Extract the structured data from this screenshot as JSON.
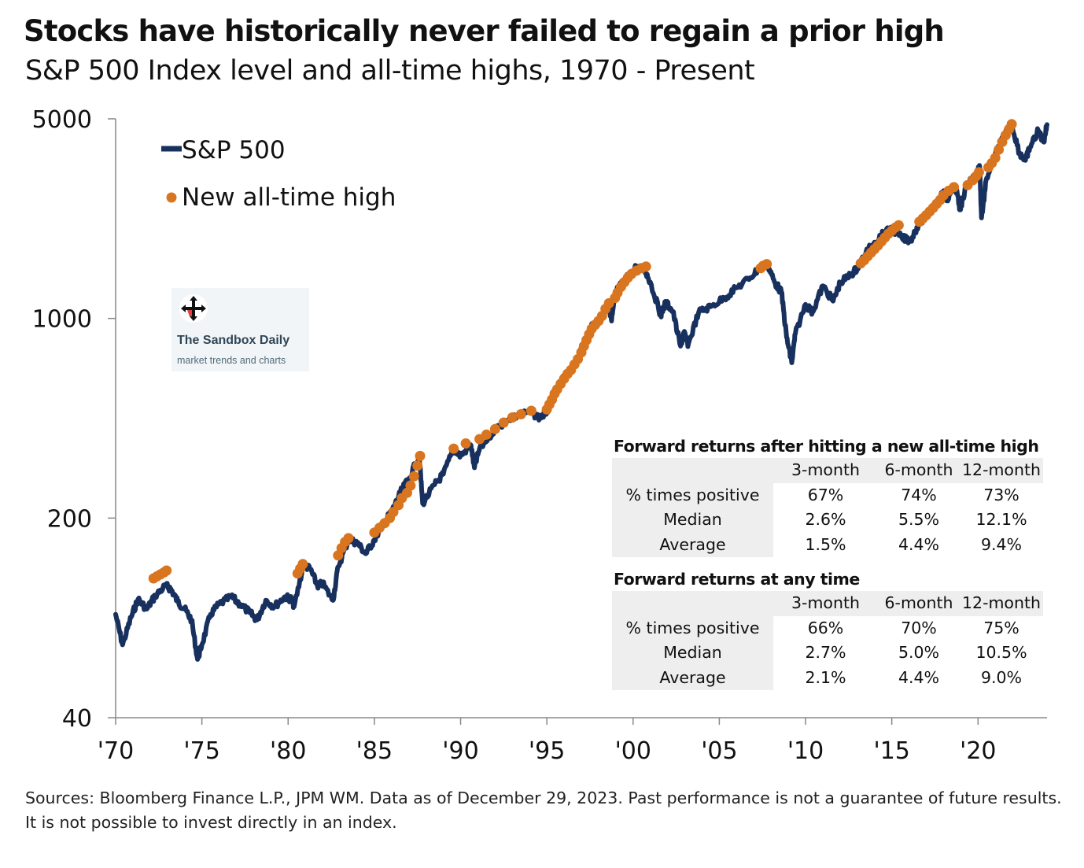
{
  "title": "Stocks have historically never failed to regain a prior high",
  "subtitle": "S&P 500 Index level and all-time highs, 1970 - Present",
  "chart_data": {
    "type": "line",
    "yscale": "log",
    "ylim": [
      40,
      5000
    ],
    "yticks": [
      {
        "value": 40,
        "label": "40"
      },
      {
        "value": 200,
        "label": "200"
      },
      {
        "value": 1000,
        "label": "1000"
      },
      {
        "value": 5000,
        "label": "5000"
      }
    ],
    "xlim": [
      1970,
      2024
    ],
    "xticks": [
      {
        "value": 1970,
        "label": "'70"
      },
      {
        "value": 1975,
        "label": "'75"
      },
      {
        "value": 1980,
        "label": "'80"
      },
      {
        "value": 1985,
        "label": "'85"
      },
      {
        "value": 1990,
        "label": "'90"
      },
      {
        "value": 1995,
        "label": "'95"
      },
      {
        "value": 2000,
        "label": "'00"
      },
      {
        "value": 2005,
        "label": "'05"
      },
      {
        "value": 2010,
        "label": "'10"
      },
      {
        "value": 2015,
        "label": "'15"
      },
      {
        "value": 2020,
        "label": "'20"
      }
    ],
    "legend": {
      "placement": "top-left",
      "line_label": "S&P 500",
      "marker_label": "New all-time high"
    },
    "colors": {
      "line": "#17305e",
      "marker": "#d9741f"
    },
    "series": [
      {
        "name": "S&P 500",
        "type": "line",
        "points": [
          [
            1970.0,
            92
          ],
          [
            1970.4,
            72
          ],
          [
            1970.9,
            90
          ],
          [
            1971.3,
            104
          ],
          [
            1971.8,
            96
          ],
          [
            1972.3,
            107
          ],
          [
            1972.9,
            116
          ],
          [
            1973.2,
            113
          ],
          [
            1973.6,
            102
          ],
          [
            1974.0,
            96
          ],
          [
            1974.4,
            88
          ],
          [
            1974.75,
            64
          ],
          [
            1975.0,
            72
          ],
          [
            1975.5,
            92
          ],
          [
            1976.0,
            100
          ],
          [
            1976.7,
            106
          ],
          [
            1977.2,
            100
          ],
          [
            1977.8,
            93
          ],
          [
            1978.2,
            88
          ],
          [
            1978.7,
            103
          ],
          [
            1979.2,
            98
          ],
          [
            1979.8,
            106
          ],
          [
            1980.2,
            104
          ],
          [
            1980.35,
            98
          ],
          [
            1980.9,
            138
          ],
          [
            1981.3,
            132
          ],
          [
            1981.7,
            116
          ],
          [
            1982.0,
            118
          ],
          [
            1982.6,
            103
          ],
          [
            1982.9,
            135
          ],
          [
            1983.5,
            168
          ],
          [
            1984.0,
            164
          ],
          [
            1984.5,
            150
          ],
          [
            1985.0,
            168
          ],
          [
            1985.5,
            191
          ],
          [
            1986.0,
            210
          ],
          [
            1986.5,
            245
          ],
          [
            1987.0,
            275
          ],
          [
            1987.6,
            330
          ],
          [
            1987.8,
            225
          ],
          [
            1988.5,
            262
          ],
          [
            1989.0,
            285
          ],
          [
            1989.6,
            350
          ],
          [
            1990.0,
            330
          ],
          [
            1990.6,
            360
          ],
          [
            1990.8,
            300
          ],
          [
            1991.1,
            350
          ],
          [
            1992.0,
            410
          ],
          [
            1993.0,
            450
          ],
          [
            1994.0,
            470
          ],
          [
            1994.6,
            450
          ],
          [
            1995.0,
            470
          ],
          [
            1995.5,
            560
          ],
          [
            1996.0,
            620
          ],
          [
            1996.6,
            690
          ],
          [
            1997.0,
            780
          ],
          [
            1997.5,
            920
          ],
          [
            1998.0,
            980
          ],
          [
            1998.6,
            1120
          ],
          [
            1998.75,
            980
          ],
          [
            1999.0,
            1240
          ],
          [
            1999.5,
            1360
          ],
          [
            2000.2,
            1520
          ],
          [
            2000.7,
            1470
          ],
          [
            2001.0,
            1340
          ],
          [
            2001.6,
            1030
          ],
          [
            2001.9,
            1140
          ],
          [
            2002.3,
            1060
          ],
          [
            2002.75,
            800
          ],
          [
            2002.95,
            890
          ],
          [
            2003.2,
            810
          ],
          [
            2003.8,
            1050
          ],
          [
            2004.5,
            1100
          ],
          [
            2005.3,
            1180
          ],
          [
            2006.0,
            1280
          ],
          [
            2006.8,
            1390
          ],
          [
            2007.4,
            1520
          ],
          [
            2007.8,
            1540
          ],
          [
            2008.2,
            1340
          ],
          [
            2008.6,
            1240
          ],
          [
            2008.9,
            860
          ],
          [
            2009.2,
            700
          ],
          [
            2009.4,
            880
          ],
          [
            2010.0,
            1120
          ],
          [
            2010.4,
            1050
          ],
          [
            2011.0,
            1300
          ],
          [
            2011.6,
            1150
          ],
          [
            2012.0,
            1330
          ],
          [
            2012.6,
            1420
          ],
          [
            2013.0,
            1500
          ],
          [
            2013.5,
            1700
          ],
          [
            2014.0,
            1850
          ],
          [
            2014.5,
            1980
          ],
          [
            2015.0,
            2060
          ],
          [
            2015.6,
            1910
          ],
          [
            2016.1,
            1880
          ],
          [
            2016.6,
            2170
          ],
          [
            2017.0,
            2270
          ],
          [
            2017.6,
            2500
          ],
          [
            2018.0,
            2800
          ],
          [
            2018.2,
            2610
          ],
          [
            2018.7,
            2920
          ],
          [
            2018.95,
            2400
          ],
          [
            2019.3,
            2900
          ],
          [
            2019.9,
            3230
          ],
          [
            2020.1,
            3380
          ],
          [
            2020.2,
            2250
          ],
          [
            2020.5,
            3100
          ],
          [
            2021.0,
            3750
          ],
          [
            2021.5,
            4350
          ],
          [
            2021.95,
            4790
          ],
          [
            2022.4,
            3800
          ],
          [
            2022.75,
            3580
          ],
          [
            2023.0,
            3970
          ],
          [
            2023.5,
            4550
          ],
          [
            2023.8,
            4150
          ],
          [
            2024.0,
            4770
          ]
        ]
      },
      {
        "name": "New all-time high",
        "type": "scatter",
        "x": [
          1972.2,
          1972.4,
          1972.6,
          1972.8,
          1972.95,
          1980.55,
          1980.7,
          1980.85,
          1982.9,
          1983.1,
          1983.3,
          1983.5,
          1985.0,
          1985.3,
          1985.6,
          1985.9,
          1986.1,
          1986.4,
          1986.6,
          1986.9,
          1987.1,
          1987.3,
          1987.5,
          1987.65,
          1989.6,
          1990.3,
          1991.1,
          1991.5,
          1992.0,
          1992.5,
          1993.0,
          1993.5,
          1994.1,
          1995.0,
          1995.15,
          1995.3,
          1995.45,
          1995.6,
          1995.8,
          1996.0,
          1996.2,
          1996.4,
          1996.6,
          1996.8,
          1997.0,
          1997.15,
          1997.3,
          1997.45,
          1997.6,
          1997.8,
          1998.0,
          1998.2,
          1998.4,
          1998.6,
          1998.95,
          1999.1,
          1999.3,
          1999.5,
          1999.7,
          1999.9,
          2000.2,
          2000.5,
          2000.75,
          2007.4,
          2007.55,
          2007.75,
          2013.2,
          2013.4,
          2013.6,
          2013.8,
          2014.0,
          2014.2,
          2014.4,
          2014.6,
          2014.8,
          2015.0,
          2015.2,
          2015.4,
          2016.6,
          2016.8,
          2017.0,
          2017.2,
          2017.4,
          2017.6,
          2017.8,
          2018.0,
          2018.3,
          2018.6,
          2019.4,
          2019.7,
          2019.9,
          2020.05,
          2020.6,
          2020.8,
          2021.0,
          2021.2,
          2021.4,
          2021.6,
          2021.8,
          2021.95
        ],
        "y": [
          123,
          125,
          127,
          129,
          131,
          128,
          133,
          138,
          148,
          157,
          165,
          170,
          178,
          185,
          192,
          200,
          210,
          222,
          235,
          245,
          260,
          280,
          305,
          330,
          350,
          365,
          378,
          392,
          410,
          432,
          450,
          462,
          475,
          480,
          500,
          520,
          545,
          565,
          590,
          615,
          640,
          660,
          690,
          720,
          760,
          800,
          840,
          880,
          920,
          950,
          980,
          1020,
          1080,
          1130,
          1180,
          1230,
          1290,
          1340,
          1390,
          1430,
          1470,
          1500,
          1520,
          1500,
          1530,
          1550,
          1560,
          1600,
          1650,
          1700,
          1750,
          1800,
          1860,
          1920,
          1980,
          2030,
          2080,
          2120,
          2180,
          2240,
          2300,
          2370,
          2440,
          2520,
          2600,
          2700,
          2800,
          2880,
          2930,
          3050,
          3150,
          3250,
          3380,
          3500,
          3650,
          3900,
          4150,
          4380,
          4600,
          4790
        ]
      }
    ]
  },
  "watermark": {
    "name": "The Sandbox Daily",
    "tagline": "market trends and charts"
  },
  "tables": [
    {
      "title": "Forward returns after hitting a new all-time high",
      "columns": [
        "",
        "3-month",
        "6-month",
        "12-month"
      ],
      "rows": [
        [
          "% times positive",
          "67%",
          "74%",
          "73%"
        ],
        [
          "Median",
          "2.6%",
          "5.5%",
          "12.1%"
        ],
        [
          "Average",
          "1.5%",
          "4.4%",
          "9.4%"
        ]
      ]
    },
    {
      "title": "Forward returns at any time",
      "columns": [
        "",
        "3-month",
        "6-month",
        "12-month"
      ],
      "rows": [
        [
          "% times positive",
          "66%",
          "70%",
          "75%"
        ],
        [
          "Median",
          "2.7%",
          "5.0%",
          "10.5%"
        ],
        [
          "Average",
          "2.1%",
          "4.4%",
          "9.0%"
        ]
      ]
    }
  ],
  "footer": "Sources: Bloomberg Finance L.P., JPM WM. Data as of December 29, 2023. Past performance is not a guarantee of future results. It is not possible to invest directly in an index."
}
